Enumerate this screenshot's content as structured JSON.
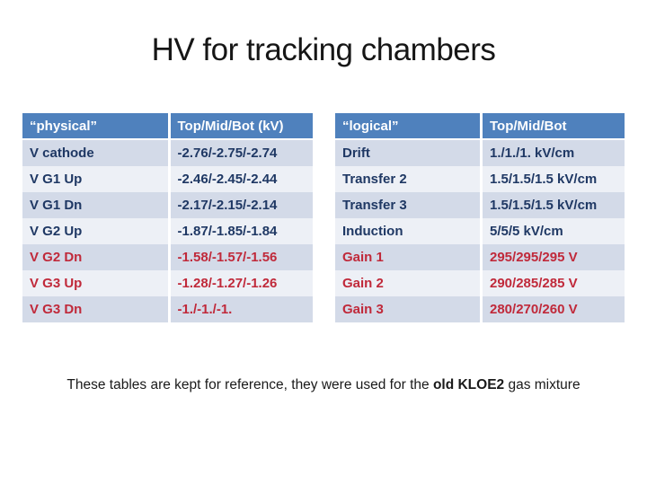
{
  "slide": {
    "title": "HV for tracking chambers"
  },
  "colors": {
    "header_bg": "#4f81bd",
    "header_text": "#ffffff",
    "row_band_dark": "#d3dae8",
    "row_band_light": "#edf0f6",
    "text_navy": "#1f3864",
    "text_red": "#c0293a",
    "background": "#ffffff"
  },
  "tables": [
    {
      "name": "physical-table",
      "headers": [
        "“physical”",
        "Top/Mid/Bot (kV)"
      ],
      "rows": [
        {
          "label": "V cathode",
          "value": "-2.76/-2.75/-2.74",
          "color": "navy"
        },
        {
          "label": "V G1 Up",
          "value": "-2.46/-2.45/-2.44",
          "color": "navy"
        },
        {
          "label": "V G1 Dn",
          "value": "-2.17/-2.15/-2.14",
          "color": "navy"
        },
        {
          "label": "V G2 Up",
          "value": "-1.87/-1.85/-1.84",
          "color": "navy"
        },
        {
          "label": "V G2 Dn",
          "value": "-1.58/-1.57/-1.56",
          "color": "red"
        },
        {
          "label": "V G3 Up",
          "value": "-1.28/-1.27/-1.26",
          "color": "red"
        },
        {
          "label": "V G3 Dn",
          "value": "-1./-1./-1.",
          "color": "red"
        }
      ]
    },
    {
      "name": "logical-table",
      "headers": [
        "“logical”",
        "Top/Mid/Bot"
      ],
      "rows": [
        {
          "label": "Drift",
          "value": "1./1./1. kV/cm",
          "color": "navy"
        },
        {
          "label": "Transfer 2",
          "value": "1.5/1.5/1.5 kV/cm",
          "color": "navy"
        },
        {
          "label": "Transfer 3",
          "value": "1.5/1.5/1.5 kV/cm",
          "color": "navy"
        },
        {
          "label": "Induction",
          "value": "5/5/5 kV/cm",
          "color": "navy"
        },
        {
          "label": "Gain 1",
          "value": "295/295/295 V",
          "color": "red"
        },
        {
          "label": "Gain 2",
          "value": "290/285/285 V",
          "color": "red"
        },
        {
          "label": "Gain 3",
          "value": "280/270/260 V",
          "color": "red"
        }
      ]
    }
  ],
  "footer": {
    "prefix": "These tables are kept for reference, they were used for the ",
    "bold": "old KLOE2",
    "suffix": " gas mixture"
  }
}
